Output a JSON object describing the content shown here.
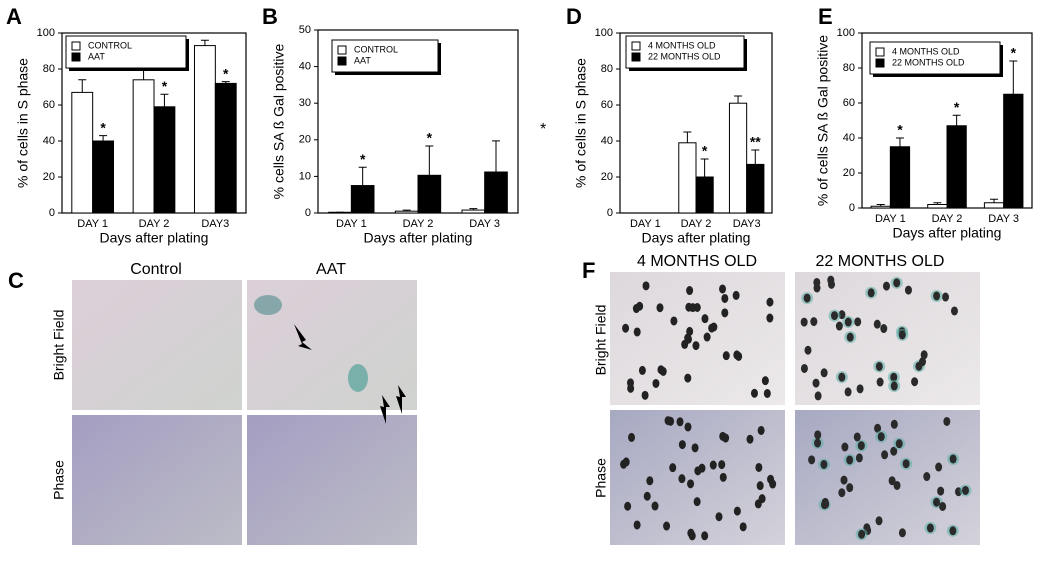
{
  "chart_data": [
    {
      "type": "bar",
      "panel": "A",
      "ylabel": "% of cells in S phase",
      "xlabel": "Days after plating",
      "categories": [
        "DAY 1",
        "DAY 2",
        "DAY3"
      ],
      "series": [
        {
          "name": "CONTROL",
          "color": "#ffffff",
          "values": [
            67,
            74,
            93
          ],
          "errors": [
            7,
            9,
            3
          ]
        },
        {
          "name": "AAT",
          "color": "#000000",
          "values": [
            40,
            59,
            72
          ],
          "errors": [
            3,
            7,
            1
          ],
          "markers": [
            "*",
            "*",
            "*"
          ]
        }
      ],
      "ylim": [
        0,
        100
      ],
      "yticks": [
        0,
        20,
        40,
        60,
        80,
        100
      ]
    },
    {
      "type": "bar",
      "panel": "B",
      "ylabel": "% cells SA ß Gal positive",
      "xlabel": "Days after plating",
      "categories": [
        "DAY 1",
        "DAY 2",
        "DAY 3"
      ],
      "series": [
        {
          "name": "CONTROL",
          "color": "#ffffff",
          "values": [
            0.2,
            0.5,
            0.8
          ],
          "errors": [
            0,
            0.3,
            0.4
          ]
        },
        {
          "name": "AAT",
          "color": "#000000",
          "values": [
            7.5,
            10.3,
            11.2
          ],
          "errors": [
            5,
            8,
            8.5
          ],
          "markers": [
            "*",
            "*",
            null
          ]
        }
      ],
      "ylim": [
        0,
        50
      ],
      "yticks": [
        0,
        10,
        20,
        30,
        40,
        50
      ]
    },
    {
      "type": "bar",
      "panel": "D",
      "ylabel": "% of cells in S phase",
      "xlabel": "Days after plating",
      "categories": [
        "DAY 1",
        "DAY 2",
        "DAY3"
      ],
      "series": [
        {
          "name": "4 MONTHS OLD",
          "color": "#ffffff",
          "values": [
            0,
            39,
            61
          ],
          "errors": [
            0,
            6,
            4
          ]
        },
        {
          "name": "22 MONTHS OLD",
          "color": "#000000",
          "values": [
            0,
            20,
            27
          ],
          "errors": [
            0,
            10,
            8
          ],
          "markers": [
            null,
            "*",
            "**"
          ]
        }
      ],
      "ylim": [
        0,
        100
      ],
      "yticks": [
        0,
        20,
        40,
        60,
        80,
        100
      ]
    },
    {
      "type": "bar",
      "panel": "E",
      "ylabel": "% of cells SA ß Gal positive",
      "xlabel": "Days after plating",
      "categories": [
        "DAY 1",
        "DAY 2",
        "DAY 3"
      ],
      "series": [
        {
          "name": "4  MONTHS OLD",
          "color": "#ffffff",
          "values": [
            1,
            2,
            3
          ],
          "errors": [
            1,
            1,
            2
          ]
        },
        {
          "name": "22 MONTHS OLD",
          "color": "#000000",
          "values": [
            35,
            47,
            65
          ],
          "errors": [
            5,
            6,
            19
          ],
          "markers": [
            "*",
            "*",
            "*"
          ]
        }
      ],
      "ylim": [
        0,
        100
      ],
      "yticks": [
        0,
        20,
        40,
        60,
        80,
        100
      ]
    }
  ],
  "stray_mark": "*",
  "panels": [
    {
      "letter": "C",
      "columns": [
        "Control",
        "AAT"
      ],
      "rows": [
        "Bright Field",
        "Phase"
      ]
    },
    {
      "letter": "F",
      "columns": [
        "4 MONTHS OLD",
        "22 MONTHS OLD"
      ],
      "rows": [
        "Bright Field",
        "Phase"
      ]
    }
  ]
}
